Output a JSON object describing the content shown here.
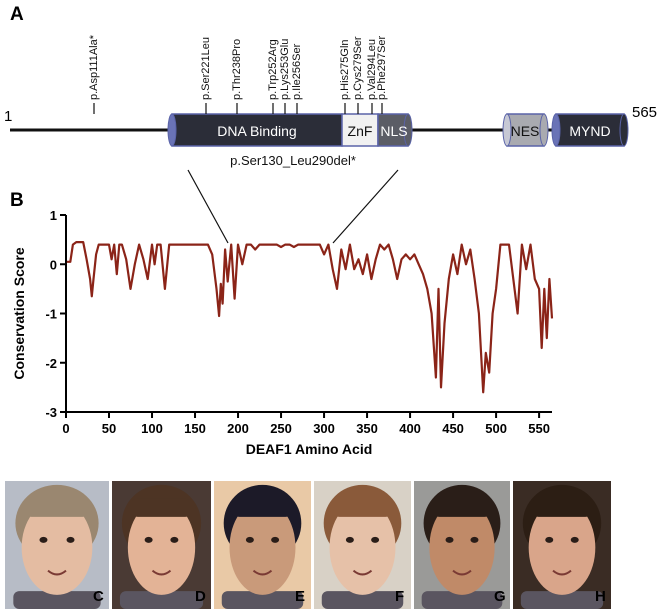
{
  "panels": {
    "a": "A",
    "b": "B"
  },
  "protein": {
    "start_label": "1",
    "end_label": "565",
    "domains": [
      {
        "key": "dna",
        "label": "DNA Binding"
      },
      {
        "key": "znf",
        "label": "ZnF"
      },
      {
        "key": "nls",
        "label": "NLS"
      },
      {
        "key": "nes",
        "label": "NES"
      },
      {
        "key": "mynd",
        "label": "MYND"
      }
    ],
    "mutations": [
      "p.Asp111Ala*",
      "p.Ser221Leu",
      "p.Thr238Pro",
      "p.Trp252Arg",
      "p.Lys253Glu",
      "p.Ile256Ser",
      "p.His275Gln",
      "p.Cys279Ser",
      "p.Val294Leu",
      "p.Phe297Ser"
    ],
    "deletion": "p.Ser130_Leu290del*"
  },
  "chart_data": {
    "type": "line",
    "title": "",
    "xlabel": "DEAF1 Amino Acid",
    "ylabel": "Conservation Score",
    "xlim": [
      0,
      565
    ],
    "ylim": [
      -3,
      1
    ],
    "xticks": [
      0,
      50,
      100,
      150,
      200,
      250,
      300,
      350,
      400,
      450,
      500,
      550
    ],
    "yticks": [
      1,
      0,
      -1,
      -2,
      -3
    ],
    "line_color": "#8b2418",
    "grid": false,
    "series": [
      {
        "name": "",
        "x": [
          1,
          5,
          8,
          12,
          20,
          24,
          28,
          30,
          32,
          35,
          38,
          42,
          50,
          53,
          56,
          59,
          62,
          65,
          70,
          75,
          80,
          85,
          90,
          95,
          100,
          103,
          106,
          110,
          115,
          120,
          125,
          130,
          135,
          140,
          145,
          150,
          155,
          160,
          165,
          170,
          175,
          178,
          180,
          182,
          185,
          188,
          192,
          196,
          200,
          205,
          210,
          215,
          220,
          225,
          230,
          235,
          240,
          245,
          250,
          255,
          260,
          265,
          270,
          275,
          280,
          285,
          290,
          295,
          300,
          305,
          310,
          315,
          320,
          325,
          330,
          335,
          340,
          345,
          350,
          355,
          360,
          365,
          370,
          375,
          380,
          385,
          390,
          395,
          400,
          405,
          410,
          415,
          420,
          425,
          430,
          433,
          436,
          440,
          445,
          450,
          455,
          460,
          465,
          470,
          475,
          480,
          485,
          488,
          492,
          496,
          500,
          505,
          510,
          515,
          520,
          525,
          530,
          535,
          540,
          545,
          550,
          553,
          556,
          559,
          562,
          565
        ],
        "y": [
          0.05,
          0.05,
          0.4,
          0.45,
          0.45,
          0.1,
          -0.3,
          -0.65,
          -0.3,
          0.2,
          0.4,
          0.4,
          0.4,
          0.1,
          0.4,
          -0.2,
          0.4,
          0.4,
          0.1,
          -0.5,
          0.0,
          0.4,
          0.1,
          -0.3,
          0.4,
          0.0,
          0.4,
          0.4,
          -0.5,
          0.4,
          0.4,
          0.4,
          0.4,
          0.4,
          0.4,
          0.4,
          0.4,
          0.4,
          0.4,
          0.2,
          -0.5,
          -1.05,
          -0.4,
          -0.8,
          0.3,
          -0.35,
          0.4,
          -0.7,
          0.4,
          0.0,
          0.4,
          0.4,
          0.3,
          0.4,
          0.4,
          0.4,
          0.4,
          0.4,
          0.35,
          0.4,
          0.4,
          0.35,
          0.4,
          0.4,
          0.4,
          0.4,
          0.4,
          0.4,
          0.2,
          0.4,
          -0.1,
          -0.5,
          0.3,
          -0.1,
          0.4,
          -0.1,
          0.1,
          -0.2,
          0.2,
          -0.3,
          0.1,
          0.4,
          0.3,
          0.4,
          0.1,
          -0.3,
          0.1,
          0.2,
          0.1,
          0.2,
          0.0,
          -0.2,
          -0.5,
          -1.0,
          -2.3,
          -0.5,
          -2.5,
          -1.2,
          -0.3,
          0.2,
          -0.2,
          0.4,
          0.0,
          0.3,
          -0.3,
          -1.0,
          -2.6,
          -1.8,
          -2.2,
          -1.0,
          -0.5,
          0.4,
          0.4,
          0.4,
          -0.3,
          -1.0,
          0.4,
          -0.1,
          0.4,
          -0.3,
          -0.5,
          -1.7,
          -0.5,
          -1.5,
          -0.3,
          -1.1
        ]
      }
    ]
  },
  "photos": [
    {
      "label": "C",
      "bg": "#b7bcc6",
      "skin": "#e4bca2",
      "hair": "#9a8770"
    },
    {
      "label": "D",
      "bg": "#4a3a34",
      "skin": "#e3b396",
      "hair": "#4d3424"
    },
    {
      "label": "E",
      "bg": "#e9c9a6",
      "skin": "#c99a7a",
      "hair": "#1c1a28"
    },
    {
      "label": "F",
      "bg": "#d8d1c6",
      "skin": "#e6c1a8",
      "hair": "#8a5a3a"
    },
    {
      "label": "G",
      "bg": "#9a9a98",
      "skin": "#c08a68",
      "hair": "#2a1e18"
    },
    {
      "label": "H",
      "bg": "#3a2c24",
      "skin": "#d9a58a",
      "hair": "#2c1e14"
    }
  ]
}
